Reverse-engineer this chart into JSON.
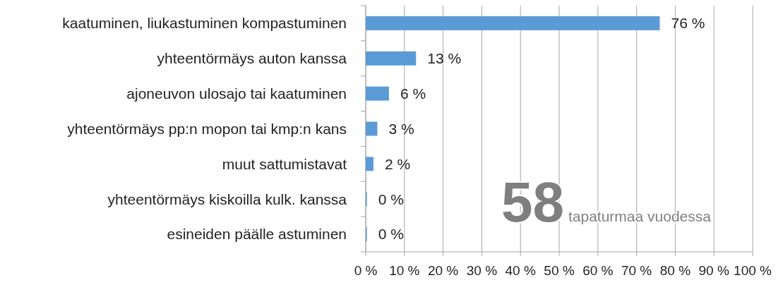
{
  "chart_data": {
    "type": "bar",
    "orientation": "horizontal",
    "categories": [
      "kaatuminen, liukastuminen kompastuminen",
      "yhteentörmäys auton kanssa",
      "ajoneuvon ulosajo tai kaatuminen",
      "yhteentörmäys pp:n mopon tai kmp:n kans",
      "muut sattumistavat",
      "yhteentörmäys kiskoilla kulk. kanssa",
      "esineiden päälle astuminen"
    ],
    "values": [
      76,
      13,
      6,
      3,
      2,
      0.3,
      0.3
    ],
    "value_labels": [
      "76 %",
      "13 %",
      "6 %",
      "3 %",
      "2 %",
      "0 %",
      "0 %"
    ],
    "color": "#5b9bd5",
    "xlim": [
      0,
      100
    ],
    "xticks": [
      {
        "value": 0,
        "label": "0 %"
      },
      {
        "value": 10,
        "label": "10 %"
      },
      {
        "value": 20,
        "label": "20 %"
      },
      {
        "value": 30,
        "label": "30 %"
      },
      {
        "value": 40,
        "label": "40 %"
      },
      {
        "value": 50,
        "label": "50 %"
      },
      {
        "value": 60,
        "label": "60 %"
      },
      {
        "value": 70,
        "label": "70 %"
      },
      {
        "value": 80,
        "label": "80 %"
      },
      {
        "value": 90,
        "label": "90 %"
      },
      {
        "value": 100,
        "label": "100 %"
      }
    ],
    "grid": "x",
    "annotations": [
      "58",
      "tapaturmaa vuodessa"
    ]
  }
}
